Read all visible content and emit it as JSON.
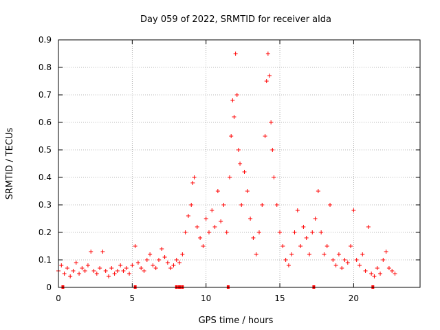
{
  "chart_data": {
    "type": "scatter",
    "title": "Day 059 of 2022, SRMTID for receiver alda",
    "xlabel": "GPS time / hours",
    "ylabel": "SRMTID / TECUs",
    "xlim": [
      0,
      24.5
    ],
    "ylim": [
      0,
      0.9
    ],
    "xticks": [
      0,
      5,
      10,
      15,
      20
    ],
    "xtick_labels": [
      "0",
      "5",
      "10",
      "15",
      "20"
    ],
    "yticks": [
      0,
      0.1,
      0.2,
      0.3,
      0.4,
      0.5,
      0.6,
      0.7,
      0.8,
      0.9
    ],
    "ytick_labels": [
      "0",
      "0.1",
      "0.2",
      "0.3",
      "0.4",
      "0.5",
      "0.6",
      "0.7",
      "0.8",
      "0.9"
    ],
    "grid": true,
    "marker": "+",
    "color": "#ff0000",
    "series": [
      {
        "name": "SRMTID",
        "points": [
          [
            0.0,
            0.06
          ],
          [
            0.2,
            0.08
          ],
          [
            0.4,
            0.05
          ],
          [
            0.6,
            0.07
          ],
          [
            0.8,
            0.04
          ],
          [
            1.0,
            0.06
          ],
          [
            1.2,
            0.09
          ],
          [
            1.4,
            0.05
          ],
          [
            1.6,
            0.07
          ],
          [
            1.8,
            0.06
          ],
          [
            2.0,
            0.08
          ],
          [
            2.2,
            0.13
          ],
          [
            2.4,
            0.06
          ],
          [
            2.6,
            0.05
          ],
          [
            2.8,
            0.07
          ],
          [
            3.0,
            0.13
          ],
          [
            3.2,
            0.06
          ],
          [
            3.4,
            0.04
          ],
          [
            3.6,
            0.07
          ],
          [
            3.8,
            0.05
          ],
          [
            4.0,
            0.06
          ],
          [
            4.2,
            0.08
          ],
          [
            4.4,
            0.06
          ],
          [
            4.6,
            0.07
          ],
          [
            4.8,
            0.05
          ],
          [
            5.0,
            0.08
          ],
          [
            5.2,
            0.15
          ],
          [
            5.4,
            0.09
          ],
          [
            5.6,
            0.07
          ],
          [
            5.8,
            0.06
          ],
          [
            6.0,
            0.1
          ],
          [
            6.2,
            0.12
          ],
          [
            6.4,
            0.08
          ],
          [
            6.6,
            0.07
          ],
          [
            6.8,
            0.1
          ],
          [
            7.0,
            0.14
          ],
          [
            7.2,
            0.11
          ],
          [
            7.4,
            0.09
          ],
          [
            7.6,
            0.07
          ],
          [
            7.8,
            0.08
          ],
          [
            8.0,
            0.1
          ],
          [
            8.2,
            0.09
          ],
          [
            8.4,
            0.12
          ],
          [
            8.6,
            0.2
          ],
          [
            8.8,
            0.26
          ],
          [
            9.0,
            0.3
          ],
          [
            9.1,
            0.38
          ],
          [
            9.2,
            0.4
          ],
          [
            9.4,
            0.22
          ],
          [
            9.6,
            0.18
          ],
          [
            9.8,
            0.15
          ],
          [
            10.0,
            0.25
          ],
          [
            10.2,
            0.2
          ],
          [
            10.4,
            0.28
          ],
          [
            10.6,
            0.22
          ],
          [
            10.8,
            0.35
          ],
          [
            11.0,
            0.24
          ],
          [
            11.2,
            0.3
          ],
          [
            11.4,
            0.2
          ],
          [
            11.6,
            0.4
          ],
          [
            11.7,
            0.55
          ],
          [
            11.8,
            0.68
          ],
          [
            11.9,
            0.62
          ],
          [
            12.0,
            0.85
          ],
          [
            12.1,
            0.7
          ],
          [
            12.2,
            0.5
          ],
          [
            12.3,
            0.45
          ],
          [
            12.4,
            0.3
          ],
          [
            12.6,
            0.42
          ],
          [
            12.8,
            0.35
          ],
          [
            13.0,
            0.25
          ],
          [
            13.2,
            0.18
          ],
          [
            13.4,
            0.12
          ],
          [
            13.6,
            0.2
          ],
          [
            13.8,
            0.3
          ],
          [
            14.0,
            0.55
          ],
          [
            14.1,
            0.75
          ],
          [
            14.2,
            0.85
          ],
          [
            14.3,
            0.77
          ],
          [
            14.4,
            0.6
          ],
          [
            14.5,
            0.5
          ],
          [
            14.6,
            0.4
          ],
          [
            14.8,
            0.3
          ],
          [
            15.0,
            0.2
          ],
          [
            15.2,
            0.15
          ],
          [
            15.4,
            0.1
          ],
          [
            15.6,
            0.08
          ],
          [
            15.8,
            0.12
          ],
          [
            16.0,
            0.2
          ],
          [
            16.2,
            0.28
          ],
          [
            16.4,
            0.15
          ],
          [
            16.6,
            0.22
          ],
          [
            16.8,
            0.18
          ],
          [
            17.0,
            0.12
          ],
          [
            17.2,
            0.2
          ],
          [
            17.4,
            0.25
          ],
          [
            17.6,
            0.35
          ],
          [
            17.8,
            0.2
          ],
          [
            18.0,
            0.12
          ],
          [
            18.2,
            0.15
          ],
          [
            18.4,
            0.3
          ],
          [
            18.6,
            0.1
          ],
          [
            18.8,
            0.08
          ],
          [
            19.0,
            0.12
          ],
          [
            19.2,
            0.07
          ],
          [
            19.4,
            0.1
          ],
          [
            19.6,
            0.09
          ],
          [
            19.8,
            0.15
          ],
          [
            20.0,
            0.28
          ],
          [
            20.2,
            0.1
          ],
          [
            20.4,
            0.08
          ],
          [
            20.6,
            0.12
          ],
          [
            20.8,
            0.06
          ],
          [
            21.0,
            0.22
          ],
          [
            21.2,
            0.05
          ],
          [
            21.4,
            0.04
          ],
          [
            21.6,
            0.07
          ],
          [
            21.8,
            0.05
          ],
          [
            22.0,
            0.1
          ],
          [
            22.2,
            0.13
          ],
          [
            22.4,
            0.07
          ],
          [
            22.6,
            0.06
          ],
          [
            22.8,
            0.05
          ]
        ]
      }
    ],
    "baseline_markers": [
      0.3,
      5.2,
      8.0,
      8.2,
      8.4,
      11.5,
      17.3,
      21.3
    ]
  }
}
